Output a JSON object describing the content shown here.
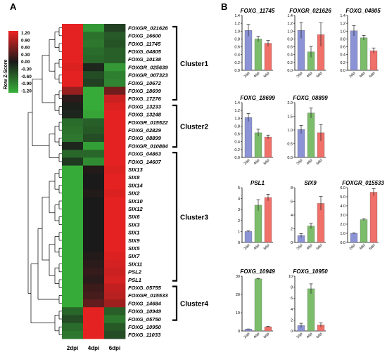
{
  "panels": {
    "a": "A",
    "b": "B"
  },
  "heatmap": {
    "legend_title": "Row Z-Score",
    "legend_ticks": [
      "1.20",
      "0.90",
      "0.60",
      "0.30",
      "0.00",
      "-0.30",
      "-0.60",
      "-0.90",
      "-1.20"
    ],
    "columns": [
      "2dpi",
      "4dpi",
      "6dpi"
    ],
    "clusters": [
      {
        "name": "Cluster1",
        "start": 0,
        "end": 9
      },
      {
        "name": "Cluster2",
        "start": 10,
        "end": 15
      },
      {
        "name": "Cluster3",
        "start": 16,
        "end": 32
      },
      {
        "name": "Cluster4",
        "start": 33,
        "end": 37
      }
    ]
  },
  "chart_data": [
    {
      "type": "heatmap",
      "colorbar": {
        "min": -1.2,
        "max": 1.2,
        "low_color": "#38b13a",
        "mid_color": "#1a1a1a",
        "high_color": "#ee2222"
      },
      "columns": [
        "2dpi",
        "4dpi",
        "6dpi"
      ],
      "rows": [
        {
          "gene": "FOXGR_021626",
          "values": [
            1.15,
            -1.0,
            -0.3
          ]
        },
        {
          "gene": "FOXG_16600",
          "values": [
            1.15,
            -0.7,
            -0.5
          ]
        },
        {
          "gene": "FOXG_11745",
          "values": [
            1.15,
            -0.75,
            -0.45
          ]
        },
        {
          "gene": "FOXG_04805",
          "values": [
            1.15,
            -0.65,
            -0.55
          ]
        },
        {
          "gene": "FOXG_10138",
          "values": [
            1.15,
            -0.6,
            -0.55
          ]
        },
        {
          "gene": "FOXGR_025639",
          "values": [
            1.1,
            -0.1,
            -1.0
          ]
        },
        {
          "gene": "FOXGR_007323",
          "values": [
            1.15,
            -0.4,
            -0.8
          ]
        },
        {
          "gene": "FOXG_10672",
          "values": [
            1.15,
            -0.3,
            -0.85
          ]
        },
        {
          "gene": "FOXG_18699",
          "values": [
            0.7,
            -1.15,
            0.5
          ]
        },
        {
          "gene": "FOXG_17276",
          "values": [
            0.1,
            -1.15,
            1.0
          ]
        },
        {
          "gene": "FOXG_13233",
          "values": [
            -0.05,
            -1.15,
            1.1
          ]
        },
        {
          "gene": "FOXG_13248",
          "values": [
            -0.1,
            -1.1,
            1.15
          ]
        },
        {
          "gene": "FOXGR_015522",
          "values": [
            -0.65,
            -0.55,
            1.15
          ]
        },
        {
          "gene": "FOXG_02829",
          "values": [
            -0.7,
            -0.5,
            1.15
          ]
        },
        {
          "gene": "FOXG_08899",
          "values": [
            -0.75,
            -0.4,
            1.15
          ]
        },
        {
          "gene": "FOXGR_010884",
          "values": [
            -0.1,
            -1.05,
            1.15
          ]
        },
        {
          "gene": "FOXG_04863",
          "values": [
            -0.6,
            -0.6,
            1.15
          ]
        },
        {
          "gene": "FOXG_14607",
          "values": [
            -0.25,
            -0.9,
            1.15
          ]
        },
        {
          "gene": "SIX13",
          "values": [
            -1.15,
            0.05,
            1.1
          ]
        },
        {
          "gene": "SIX8",
          "values": [
            -1.15,
            0.0,
            1.15
          ]
        },
        {
          "gene": "SIX14",
          "values": [
            -1.15,
            0.0,
            1.15
          ]
        },
        {
          "gene": "SIX2",
          "values": [
            -1.15,
            0.05,
            1.1
          ]
        },
        {
          "gene": "SIX10",
          "values": [
            -1.15,
            0.0,
            1.15
          ]
        },
        {
          "gene": "SIX12",
          "values": [
            -1.15,
            0.0,
            1.15
          ]
        },
        {
          "gene": "SIX6",
          "values": [
            -1.15,
            0.0,
            1.15
          ]
        },
        {
          "gene": "SIX3",
          "values": [
            -1.15,
            0.0,
            1.15
          ]
        },
        {
          "gene": "SIX1",
          "values": [
            -1.15,
            0.0,
            1.15
          ]
        },
        {
          "gene": "SIX9",
          "values": [
            -1.15,
            0.0,
            1.15
          ]
        },
        {
          "gene": "SIX5",
          "values": [
            -1.15,
            0.0,
            1.15
          ]
        },
        {
          "gene": "SIX7",
          "values": [
            -1.15,
            0.05,
            1.1
          ]
        },
        {
          "gene": "SIX11",
          "values": [
            -1.15,
            0.1,
            1.05
          ]
        },
        {
          "gene": "PSL2",
          "values": [
            -1.15,
            0.15,
            1.0
          ]
        },
        {
          "gene": "PSL1",
          "values": [
            -1.15,
            0.1,
            1.05
          ]
        },
        {
          "gene": "FOXG_05755",
          "values": [
            -1.15,
            0.2,
            0.95
          ]
        },
        {
          "gene": "FOXGR_015533",
          "values": [
            -1.15,
            0.25,
            0.9
          ]
        },
        {
          "gene": "FOXG_14684",
          "values": [
            -1.15,
            0.4,
            0.75
          ]
        },
        {
          "gene": "FOXG_10949",
          "values": [
            -0.6,
            1.15,
            -0.55
          ]
        },
        {
          "gene": "FOXG_05750",
          "values": [
            -0.4,
            1.15,
            -0.75
          ]
        },
        {
          "gene": "FOXG_10950",
          "values": [
            -0.65,
            1.15,
            -0.5
          ]
        },
        {
          "gene": "FOXG_11033",
          "values": [
            -0.75,
            1.15,
            -0.4
          ]
        }
      ]
    },
    {
      "type": "bar",
      "title": "FOXG_11745",
      "categories": [
        "2dpi",
        "4dpi",
        "6dpi"
      ],
      "values": [
        1.02,
        0.8,
        0.69
      ],
      "errors": [
        0.15,
        0.07,
        0.07
      ],
      "ylim": [
        0,
        1.4
      ],
      "yticks": [
        "0.0",
        "0.2",
        "0.4",
        "0.6",
        "0.8",
        "1.0",
        "1.2",
        "1.4"
      ]
    },
    {
      "type": "bar",
      "title": "FOXGR_021626",
      "categories": [
        "2dpi",
        "4dpi",
        "6dpi"
      ],
      "values": [
        1.02,
        0.47,
        0.91
      ],
      "errors": [
        0.2,
        0.14,
        0.3
      ],
      "ylim": [
        0,
        1.4
      ],
      "yticks": [
        "0.0",
        "0.2",
        "0.4",
        "0.6",
        "0.8",
        "1.0",
        "1.2",
        "1.4"
      ]
    },
    {
      "type": "bar",
      "title": "FOXG_04805",
      "categories": [
        "2dpi",
        "4dpi",
        "6dpi"
      ],
      "values": [
        1.01,
        0.83,
        0.5
      ],
      "errors": [
        0.13,
        0.06,
        0.07
      ],
      "ylim": [
        0,
        1.4
      ],
      "yticks": [
        "0.0",
        "0.2",
        "0.4",
        "0.6",
        "0.8",
        "1.0",
        "1.2",
        "1.4"
      ]
    },
    {
      "type": "bar",
      "title": "FOXG_18699",
      "categories": [
        "2dpi",
        "4dpi",
        "6dpi"
      ],
      "values": [
        1.02,
        0.63,
        0.52
      ],
      "errors": [
        0.1,
        0.09,
        0.05
      ],
      "ylim": [
        0,
        1.4
      ],
      "yticks": [
        "0.0",
        "0.2",
        "0.4",
        "0.6",
        "0.8",
        "1.0",
        "1.2",
        "1.4"
      ]
    },
    {
      "type": "bar",
      "title": "FOXG_08899",
      "categories": [
        "2dpi",
        "4dpi",
        "6dpi"
      ],
      "values": [
        1.02,
        1.62,
        0.9
      ],
      "errors": [
        0.15,
        0.18,
        0.3
      ],
      "ylim": [
        0,
        2.0
      ],
      "yticks": [
        "0.0",
        "0.5",
        "1.0",
        "1.5",
        "2.0"
      ]
    },
    {
      "type": "bar",
      "title": "PSL1",
      "categories": [
        "2dpi",
        "4dpi",
        "6dpi"
      ],
      "values": [
        1.0,
        3.4,
        4.1
      ],
      "errors": [
        0.05,
        0.5,
        0.3
      ],
      "ylim": [
        0,
        5
      ],
      "yticks": [
        "0",
        "1",
        "2",
        "3",
        "4",
        "5"
      ]
    },
    {
      "type": "bar",
      "title": "SIX9",
      "categories": [
        "2dpi",
        "4dpi",
        "6dpi"
      ],
      "values": [
        1.0,
        2.4,
        5.7
      ],
      "errors": [
        0.3,
        0.4,
        1.0
      ],
      "ylim": [
        0,
        8
      ],
      "yticks": [
        "0",
        "2",
        "4",
        "6",
        "8"
      ]
    },
    {
      "type": "bar",
      "title": "FOXGR_015533",
      "categories": [
        "2dpi",
        "4dpi",
        "6dpi"
      ],
      "values": [
        1.0,
        2.5,
        5.5
      ],
      "errors": [
        0.05,
        0.1,
        0.4
      ],
      "ylim": [
        0,
        6
      ],
      "yticks": [
        "0.0",
        "1.0",
        "2.0",
        "3.0",
        "4.0",
        "5.0",
        "6.0"
      ]
    },
    {
      "type": "bar",
      "title": "FOXG_10949",
      "categories": [
        "2dpi",
        "4dpi",
        "6dpi"
      ],
      "values": [
        1.0,
        28.5,
        2.3
      ],
      "errors": [
        0.1,
        0.3,
        0.2
      ],
      "ylim": [
        0,
        30
      ],
      "yticks": [
        "0",
        "10",
        "20",
        "30"
      ]
    },
    {
      "type": "bar",
      "title": "FOXG_10950",
      "categories": [
        "2dpi",
        "4dpi",
        "6dpi"
      ],
      "values": [
        1.0,
        7.7,
        1.1
      ],
      "errors": [
        0.4,
        0.9,
        0.4
      ],
      "ylim": [
        0,
        10
      ],
      "yticks": [
        "0",
        "2",
        "4",
        "6",
        "8",
        "10"
      ]
    }
  ],
  "bar_colors": [
    "#8b93d6",
    "#7bbd6a",
    "#f0706a"
  ]
}
